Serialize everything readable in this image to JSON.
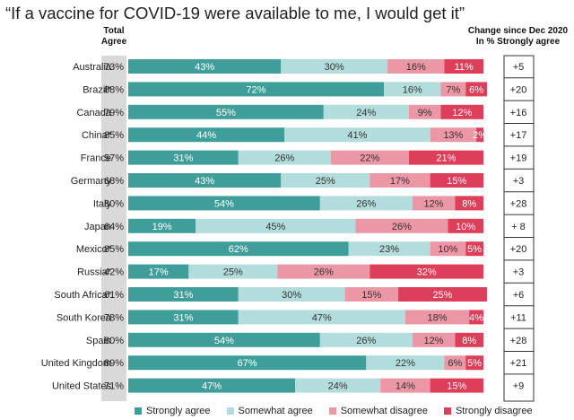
{
  "title": "“If a vaccine for COVID-19 were available to me, I would get it”",
  "headers": {
    "total_agree_line1": "Total",
    "total_agree_line2": "Agree",
    "change_line1": "Change since Dec 2020",
    "change_line2": "In % Strongly agree"
  },
  "colors": {
    "strongly_agree": "#3f9e9a",
    "somewhat_agree": "#b3dcdc",
    "somewhat_disagree": "#ec97a6",
    "strongly_disagree": "#dd3f5a",
    "total_bg": "#d9d9d9"
  },
  "chart_data": {
    "type": "bar",
    "orientation": "horizontal",
    "stacked": true,
    "categories": [
      "Australia",
      "Brazil*",
      "Canada",
      "China*",
      "France",
      "Germany",
      "Italy",
      "Japan",
      "Mexico*",
      "Russia*",
      "South Africa*",
      "South Korea",
      "Spain",
      "United Kingdom",
      "United States"
    ],
    "total_agree": [
      "73%",
      "88%",
      "79%",
      "85%",
      "57%",
      "68%",
      "80%",
      "64%",
      "85%",
      "42%",
      "61%",
      "78%",
      "80%",
      "89%",
      "71%"
    ],
    "change": [
      "+5",
      "+20",
      "+16",
      "+17",
      "+19",
      "+3",
      "+28",
      "+ 8",
      "+20",
      "+3",
      "+6",
      "+11",
      "+28",
      "+21",
      "+9"
    ],
    "series": [
      {
        "name": "Strongly agree",
        "values": [
          43,
          72,
          55,
          44,
          31,
          43,
          54,
          19,
          62,
          17,
          31,
          31,
          54,
          67,
          47
        ]
      },
      {
        "name": "Somewhat agree",
        "values": [
          30,
          16,
          24,
          41,
          26,
          25,
          26,
          45,
          23,
          25,
          30,
          47,
          26,
          22,
          24
        ]
      },
      {
        "name": "Somewhat disagree",
        "values": [
          16,
          7,
          9,
          13,
          22,
          17,
          12,
          26,
          10,
          26,
          15,
          18,
          12,
          6,
          14
        ]
      },
      {
        "name": "Strongly disagree",
        "values": [
          11,
          6,
          12,
          2,
          21,
          15,
          8,
          10,
          5,
          32,
          25,
          4,
          8,
          5,
          15
        ]
      }
    ],
    "labels": [
      [
        "43%",
        "30%",
        "16%",
        "11%"
      ],
      [
        "72%",
        "16%",
        "7%",
        "6%"
      ],
      [
        "55%",
        "24%",
        "9%",
        "12%"
      ],
      [
        "44%",
        "41%",
        "13%",
        "2%"
      ],
      [
        "31%",
        "26%",
        "22%",
        "21%"
      ],
      [
        "43%",
        "25%",
        "17%",
        "15%"
      ],
      [
        "54%",
        "26%",
        "12%",
        "8%"
      ],
      [
        "19%",
        "45%",
        "26%",
        "10%"
      ],
      [
        "62%",
        "23%",
        "10%",
        "5%"
      ],
      [
        "17%",
        "25%",
        "26%",
        "32%"
      ],
      [
        "31%",
        "30%",
        "15%",
        "25%"
      ],
      [
        "31%",
        "47%",
        "18%",
        "4%"
      ],
      [
        "54%",
        "26%",
        "12%",
        "8%"
      ],
      [
        "67%",
        "22%",
        "6%",
        "5%"
      ],
      [
        "47%",
        "24%",
        "14%",
        "15%"
      ]
    ],
    "xlim": [
      0,
      100
    ],
    "legend_position": "bottom"
  }
}
